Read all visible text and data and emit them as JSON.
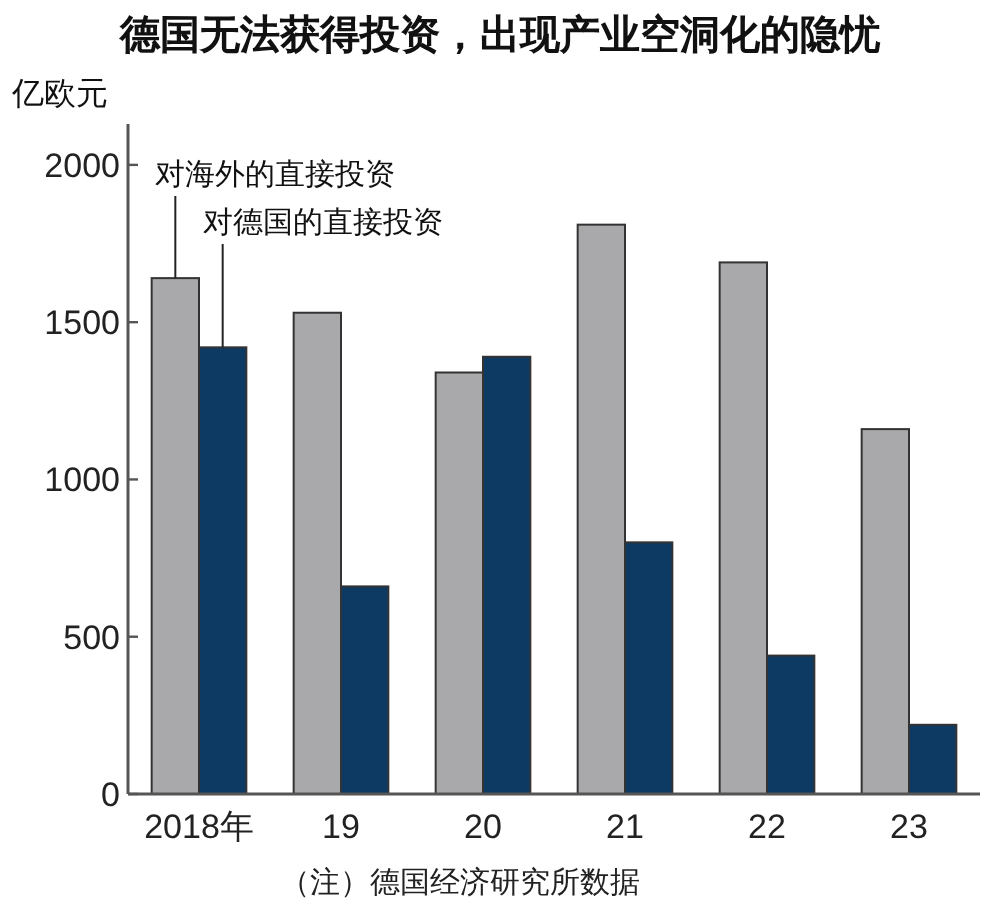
{
  "chart_data": {
    "type": "bar",
    "title": "德国无法获得投资，出现产业空洞化的隐忧",
    "ylabel": "亿欧元",
    "categories": [
      "2018年",
      "19",
      "20",
      "21",
      "22",
      "23"
    ],
    "series": [
      {
        "name": "对海外的直接投资",
        "color": "#a9a9ab",
        "values": [
          1640,
          1530,
          1340,
          1810,
          1690,
          1160
        ]
      },
      {
        "name": "对德国的直接投资",
        "color": "#0d3a62",
        "values": [
          1420,
          660,
          1390,
          800,
          440,
          220
        ]
      }
    ],
    "ylim": [
      0,
      2130
    ],
    "yticks": [
      0,
      500,
      1000,
      1500,
      2000
    ],
    "grid": false,
    "legend": "top left",
    "annotations": [
      "（注）德国经济研究所数据"
    ]
  }
}
